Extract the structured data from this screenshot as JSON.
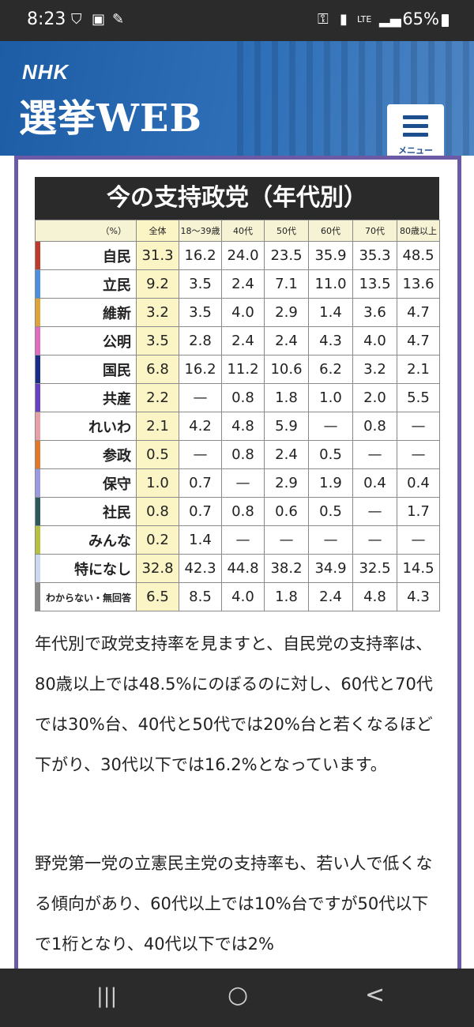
{
  "status_bar": {
    "time": "8:23",
    "battery": "65%",
    "network": "LTE"
  },
  "header": {
    "logo": "NHK",
    "title": "選挙WEB",
    "menu_label": "メニュー"
  },
  "chart_data": {
    "type": "table",
    "title": "今の支持政党（年代別）",
    "columns": [
      "（%）",
      "全体",
      "18〜39歳",
      "40代",
      "50代",
      "60代",
      "70代",
      "80歳以上"
    ],
    "rows": [
      {
        "party": "自民",
        "color": "#c0392b",
        "values": [
          "31.3",
          "16.2",
          "24.0",
          "23.5",
          "35.9",
          "35.3",
          "48.5"
        ]
      },
      {
        "party": "立民",
        "color": "#4a8fe0",
        "values": [
          "9.2",
          "3.5",
          "2.4",
          "7.1",
          "11.0",
          "13.5",
          "13.6"
        ]
      },
      {
        "party": "維新",
        "color": "#e0a23a",
        "values": [
          "3.2",
          "3.5",
          "4.0",
          "2.9",
          "1.4",
          "3.6",
          "4.7"
        ]
      },
      {
        "party": "公明",
        "color": "#e06cc0",
        "values": [
          "3.5",
          "2.8",
          "2.4",
          "2.4",
          "4.3",
          "4.0",
          "4.7"
        ]
      },
      {
        "party": "国民",
        "color": "#1a2d8a",
        "values": [
          "6.8",
          "16.2",
          "11.2",
          "10.6",
          "6.2",
          "3.2",
          "2.1"
        ]
      },
      {
        "party": "共産",
        "color": "#6a3fc6",
        "values": [
          "2.2",
          "—",
          "0.8",
          "1.8",
          "1.0",
          "2.0",
          "5.5"
        ]
      },
      {
        "party": "れいわ",
        "color": "#e8a0a8",
        "values": [
          "2.1",
          "4.2",
          "4.8",
          "5.9",
          "—",
          "0.8",
          "—"
        ]
      },
      {
        "party": "参政",
        "color": "#e07a2a",
        "values": [
          "0.5",
          "—",
          "0.8",
          "2.4",
          "0.5",
          "—",
          "—"
        ]
      },
      {
        "party": "保守",
        "color": "#9a9ae0",
        "values": [
          "1.0",
          "0.7",
          "—",
          "2.9",
          "1.9",
          "0.4",
          "0.4"
        ]
      },
      {
        "party": "社民",
        "color": "#2a5a5a",
        "values": [
          "0.8",
          "0.7",
          "0.8",
          "0.6",
          "0.5",
          "—",
          "1.7"
        ]
      },
      {
        "party": "みんな",
        "color": "#b8c040",
        "values": [
          "0.2",
          "1.4",
          "—",
          "—",
          "—",
          "—",
          "—"
        ]
      },
      {
        "party": "特になし",
        "color": "#c8d8f0",
        "values": [
          "32.8",
          "42.3",
          "44.8",
          "38.2",
          "34.9",
          "32.5",
          "14.5"
        ]
      },
      {
        "party": "わからない・無回答",
        "color": "#888888",
        "values": [
          "6.5",
          "8.5",
          "4.0",
          "1.8",
          "2.4",
          "4.8",
          "4.3"
        ]
      }
    ]
  },
  "article": {
    "p1": "年代別で政党支持率を見ますと、自民党の支持率は、80歳以上では48.5%にのぼるのに対し、60代と70代では30%台、40代と50代では20%台と若くなるほど下がり、30代以下では16.2%となっています。",
    "p2": "野党第一党の立憲民主党の支持率も、若い人で低くなる傾向があり、60代以上では10%台ですが50代以下で1桁となり、40代以下では2%"
  },
  "navbar": {
    "recent": "|||",
    "home": "○",
    "back": "<"
  }
}
